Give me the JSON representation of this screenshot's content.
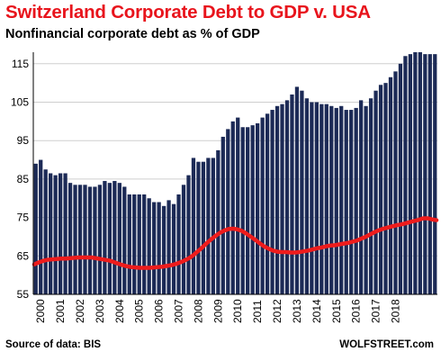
{
  "header": {
    "title": "Switzerland Corporate Debt to GDP v. USA",
    "subtitle": "Nonfinancial corporate debt as % of GDP"
  },
  "footer": {
    "source": "Source of data: BIS",
    "brand": "WOLFSTREET.com"
  },
  "colors": {
    "title": "#e8141c",
    "bars": "#1c2a56",
    "line": "#ee1c1c",
    "grid": "#cfcfcf"
  },
  "chart_data": {
    "type": "bar",
    "title": "Switzerland Corporate Debt to GDP v. USA",
    "subtitle": "Nonfinancial corporate debt as % of GDP",
    "ylim": [
      55,
      118
    ],
    "yticks": [
      55,
      65,
      75,
      85,
      95,
      105,
      115
    ],
    "grid": true,
    "x_ticks": [
      "2000",
      "2001",
      "2002",
      "2003",
      "2004",
      "2005",
      "2006",
      "2007",
      "2008",
      "2009",
      "2010",
      "2011",
      "2012",
      "2013",
      "2014",
      "2015",
      "2016",
      "2017",
      "2018"
    ],
    "series": [
      {
        "type": "bar",
        "values": [
          89,
          90,
          87.5,
          86.5,
          86,
          86.5,
          86.5,
          84,
          83.5,
          83.5,
          83.5,
          83,
          83,
          83.5,
          84.5,
          84,
          84.5,
          84,
          83,
          81,
          81,
          81,
          81,
          80,
          79,
          79,
          78,
          79.5,
          78.5,
          81,
          83.5,
          86,
          90.5,
          89.5,
          89.5,
          90.5,
          90.5,
          92.5,
          96,
          98,
          100,
          101,
          98.5,
          98.5,
          99,
          99.5,
          101,
          102,
          103,
          104,
          104.5,
          105.5,
          107,
          109,
          108,
          106,
          105,
          105,
          104.5,
          104.5,
          104,
          103.5,
          104,
          103,
          103,
          103.5,
          105.5,
          104,
          106,
          108,
          109.5,
          110,
          111.5,
          113,
          115,
          117,
          117.5,
          118,
          118,
          117.5,
          117.5,
          117.5
        ]
      },
      {
        "type": "line",
        "values": [
          62.8,
          63.3,
          63.7,
          64,
          64.1,
          64.2,
          64.3,
          64.3,
          64.4,
          64.5,
          64.6,
          64.6,
          64.6,
          64.6,
          64.4,
          64.2,
          64,
          63.8,
          63.4,
          63,
          62.6,
          62.3,
          62.1,
          62,
          61.9,
          61.9,
          61.9,
          62,
          62.1,
          62.2,
          62.4,
          62.6,
          62.9,
          63.3,
          63.8,
          64.4,
          65.2,
          66.2,
          67.2,
          68.3,
          69.3,
          70.2,
          71,
          71.6,
          72,
          72.1,
          71.9,
          71.5,
          70.8,
          70,
          69.2,
          68.3,
          67.5,
          66.9,
          66.4,
          66.1,
          66,
          66,
          65.9,
          65.9,
          66,
          66.2,
          66.4,
          66.7,
          67,
          67.2,
          67.5,
          67.7,
          67.8,
          68,
          68.2,
          68.4,
          68.7,
          69,
          69.5,
          70,
          70.6,
          71.2,
          71.7,
          72.1,
          72.4,
          72.7,
          73,
          73.2,
          73.5,
          73.8,
          74.1,
          74.4,
          74.8,
          74.8,
          74.5,
          74.3
        ]
      }
    ]
  }
}
